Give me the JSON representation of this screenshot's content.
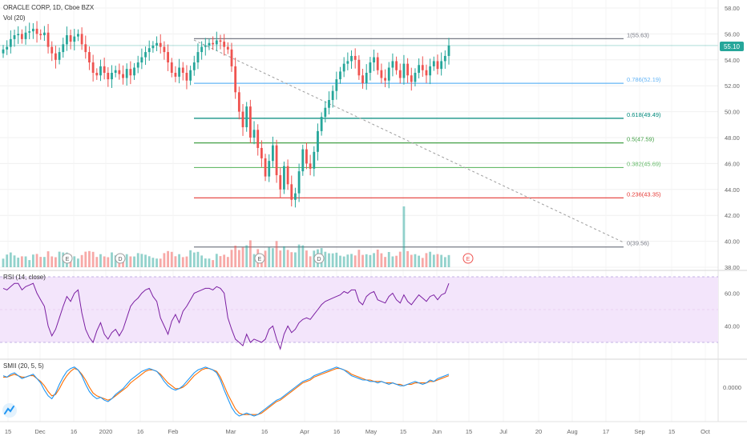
{
  "header": {
    "symbol": "ORACLE CORP, 1D, Cboe BZX",
    "volume_label": "Vol (20)",
    "rsi_label": "RSI (14, close)",
    "smii_label": "SMII (20, 5, 5)"
  },
  "colors": {
    "up": "#26a69a",
    "down": "#ef5350",
    "rsi_line": "#7b1fa2",
    "rsi_bg": "#f3e5fb",
    "smii_fast": "#2196f3",
    "smii_slow": "#ff6d00",
    "price_badge": "#26a69a",
    "trend_line": "#9e9e9e"
  },
  "price_axis": {
    "min": 38,
    "max": 58,
    "ticks": [
      "58.00",
      "56.00",
      "55.10",
      "54.00",
      "52.00",
      "50.00",
      "48.00",
      "46.00",
      "44.00",
      "42.00",
      "40.00",
      "38.00"
    ],
    "last_price": "55.10",
    "last_value": 55.1
  },
  "rsi_axis": {
    "min": 20,
    "max": 80,
    "ticks": [
      "60.00",
      "40.00"
    ],
    "band_upper": 70,
    "band_lower": 30
  },
  "smii_axis": {
    "ticks": [
      "0.0000"
    ]
  },
  "x_axis": {
    "ticks": [
      "15",
      "Dec",
      "16",
      "2020",
      "16",
      "Feb",
      "Mar",
      "16",
      "Apr",
      "16",
      "May",
      "15",
      "Jun",
      "15",
      "Jul",
      "20",
      "Aug",
      "17",
      "Sep",
      "15",
      "Oct"
    ]
  },
  "fib_levels": [
    {
      "label": "1(55.63)",
      "value": 55.63,
      "color": "#787b86"
    },
    {
      "label": "0.786(52.19)",
      "value": 52.19,
      "color": "#64b5f6"
    },
    {
      "label": "0.618(49.49)",
      "value": 49.49,
      "color": "#00897b"
    },
    {
      "label": "0.5(47.59)",
      "value": 47.59,
      "color": "#43a047"
    },
    {
      "label": "0.382(45.69)",
      "value": 45.69,
      "color": "#66bb6a"
    },
    {
      "label": "0.236(43.35)",
      "value": 43.35,
      "color": "#e53935"
    },
    {
      "label": "0(39.56)",
      "value": 39.56,
      "color": "#787b86"
    }
  ],
  "events": [
    "E",
    "D",
    "E",
    "D",
    "E"
  ],
  "chart_data": {
    "type": "candlestick",
    "symbol": "ORACLE CORP",
    "interval": "1D",
    "exchange": "Cboe BZX",
    "close_series": [
      54.8,
      55.0,
      55.6,
      55.9,
      56.0,
      55.6,
      56.1,
      56.2,
      56.4,
      56.0,
      55.9,
      56.1,
      55.0,
      54.5,
      54.0,
      54.6,
      55.2,
      55.9,
      55.4,
      55.8,
      56.0,
      55.2,
      54.6,
      53.8,
      53.0,
      52.8,
      53.5,
      53.0,
      52.5,
      53.0,
      53.2,
      52.9,
      52.6,
      53.3,
      52.8,
      53.4,
      53.8,
      54.2,
      54.6,
      54.9,
      55.1,
      55.3,
      55.0,
      54.6,
      53.8,
      53.0,
      52.7,
      53.4,
      53.0,
      52.4,
      53.2,
      53.8,
      54.6,
      55.0,
      55.1,
      55.3,
      55.2,
      55.5,
      55.4,
      55.0,
      54.8,
      53.5,
      51.5,
      50.0,
      48.8,
      50.4,
      48.0,
      48.6,
      47.2,
      46.4,
      45.0,
      46.2,
      47.4,
      45.1,
      44.0,
      45.8,
      44.4,
      43.2,
      43.7,
      45.4,
      47.1,
      46.0,
      45.6,
      46.9,
      48.5,
      49.6,
      50.3,
      50.9,
      51.6,
      52.5,
      53.1,
      53.7,
      53.9,
      54.3,
      54.0,
      52.8,
      52.2,
      53.0,
      53.8,
      54.2,
      53.2,
      52.6,
      52.4,
      53.4,
      53.9,
      53.2,
      52.6,
      53.7,
      52.8,
      52.3,
      53.0,
      53.6,
      53.2,
      52.8,
      53.5,
      53.9,
      53.3,
      53.9,
      54.3,
      55.1
    ],
    "fibonacci_retracement": [
      {
        "ratio": 1,
        "price": 55.63
      },
      {
        "ratio": 0.786,
        "price": 52.19
      },
      {
        "ratio": 0.618,
        "price": 49.49
      },
      {
        "ratio": 0.5,
        "price": 47.59
      },
      {
        "ratio": 0.382,
        "price": 45.69
      },
      {
        "ratio": 0.236,
        "price": 43.35
      },
      {
        "ratio": 0,
        "price": 39.56
      }
    ],
    "rsi_series": [
      63,
      62,
      64,
      66,
      66,
      62,
      64,
      65,
      66,
      60,
      56,
      52,
      40,
      34,
      38,
      45,
      52,
      58,
      55,
      60,
      62,
      48,
      38,
      33,
      30,
      37,
      42,
      35,
      32,
      36,
      38,
      34,
      38,
      45,
      52,
      55,
      57,
      60,
      62,
      63,
      58,
      55,
      45,
      40,
      35,
      43,
      47,
      42,
      49,
      52,
      56,
      60,
      61,
      62,
      63,
      63,
      62,
      64,
      63,
      60,
      45,
      38,
      32,
      30,
      28,
      35,
      30,
      32,
      31,
      30,
      32,
      38,
      40,
      32,
      26,
      35,
      40,
      36,
      38,
      42,
      44,
      45,
      44,
      47,
      50,
      53,
      55,
      56,
      57,
      58,
      59,
      61,
      60,
      62,
      62,
      55,
      53,
      58,
      60,
      61,
      56,
      55,
      54,
      58,
      60,
      56,
      54,
      59,
      55,
      53,
      56,
      59,
      57,
      55,
      58,
      59,
      56,
      59,
      60,
      66
    ],
    "smii_fast_series": [
      0.08,
      0.07,
      0.09,
      0.1,
      0.08,
      0.06,
      0.07,
      0.08,
      0.09,
      0.06,
      0.03,
      -0.02,
      -0.06,
      -0.08,
      -0.04,
      0.02,
      0.07,
      0.11,
      0.13,
      0.14,
      0.12,
      0.08,
      0.02,
      -0.03,
      -0.06,
      -0.08,
      -0.07,
      -0.09,
      -0.1,
      -0.08,
      -0.05,
      -0.03,
      -0.01,
      0.02,
      0.05,
      0.07,
      0.09,
      0.11,
      0.12,
      0.13,
      0.12,
      0.11,
      0.08,
      0.04,
      0.01,
      -0.01,
      -0.02,
      -0.01,
      0.01,
      0.04,
      0.07,
      0.1,
      0.12,
      0.13,
      0.14,
      0.13,
      0.12,
      0.1,
      0.05,
      -0.02,
      -0.08,
      -0.14,
      -0.18,
      -0.2,
      -0.19,
      -0.18,
      -0.19,
      -0.2,
      -0.19,
      -0.17,
      -0.15,
      -0.13,
      -0.11,
      -0.09,
      -0.08,
      -0.06,
      -0.04,
      -0.02,
      0.0,
      0.02,
      0.04,
      0.05,
      0.06,
      0.08,
      0.09,
      0.1,
      0.11,
      0.12,
      0.13,
      0.14,
      0.13,
      0.12,
      0.1,
      0.08,
      0.07,
      0.06,
      0.05,
      0.05,
      0.04,
      0.04,
      0.03,
      0.04,
      0.03,
      0.02,
      0.03,
      0.02,
      0.01,
      0.01,
      0.02,
      0.03,
      0.04,
      0.03,
      0.02,
      0.03,
      0.05,
      0.04,
      0.06,
      0.07,
      0.08,
      0.09
    ],
    "smii_slow_series": [
      0.07,
      0.07,
      0.08,
      0.09,
      0.08,
      0.07,
      0.07,
      0.08,
      0.08,
      0.06,
      0.04,
      0.01,
      -0.03,
      -0.06,
      -0.05,
      -0.01,
      0.04,
      0.08,
      0.11,
      0.13,
      0.12,
      0.09,
      0.05,
      0.0,
      -0.04,
      -0.06,
      -0.07,
      -0.08,
      -0.09,
      -0.08,
      -0.06,
      -0.04,
      -0.02,
      0.0,
      0.03,
      0.05,
      0.07,
      0.09,
      0.11,
      0.12,
      0.12,
      0.11,
      0.09,
      0.06,
      0.03,
      0.01,
      -0.01,
      -0.01,
      0.0,
      0.02,
      0.05,
      0.08,
      0.1,
      0.12,
      0.13,
      0.13,
      0.12,
      0.11,
      0.07,
      0.01,
      -0.05,
      -0.1,
      -0.15,
      -0.18,
      -0.19,
      -0.19,
      -0.19,
      -0.19,
      -0.19,
      -0.18,
      -0.16,
      -0.14,
      -0.12,
      -0.1,
      -0.09,
      -0.07,
      -0.05,
      -0.03,
      -0.01,
      0.01,
      0.03,
      0.04,
      0.05,
      0.07,
      0.08,
      0.09,
      0.1,
      0.11,
      0.12,
      0.13,
      0.13,
      0.12,
      0.11,
      0.09,
      0.08,
      0.07,
      0.06,
      0.05,
      0.05,
      0.04,
      0.04,
      0.04,
      0.03,
      0.03,
      0.03,
      0.02,
      0.02,
      0.01,
      0.02,
      0.02,
      0.03,
      0.03,
      0.03,
      0.03,
      0.04,
      0.04,
      0.05,
      0.06,
      0.07,
      0.08
    ]
  }
}
